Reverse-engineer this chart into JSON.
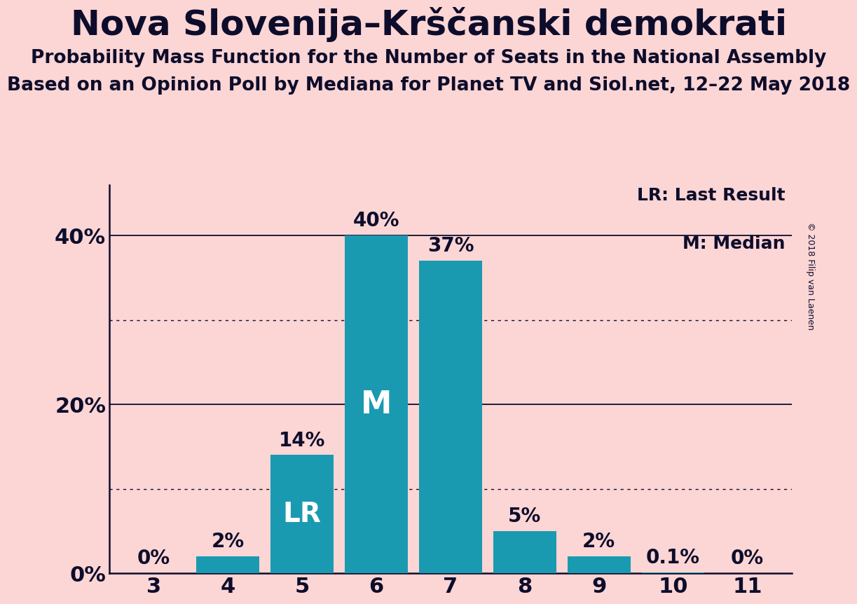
{
  "title": "Nova Slovenija–Krščanski demokrati",
  "subtitle1": "Probability Mass Function for the Number of Seats in the National Assembly",
  "subtitle2": "Based on an Opinion Poll by Mediana for Planet TV and Siol.net, 12–22 May 2018",
  "copyright": "© 2018 Filip van Laenen",
  "categories": [
    3,
    4,
    5,
    6,
    7,
    8,
    9,
    10,
    11
  ],
  "values": [
    0.0,
    2.0,
    14.0,
    40.0,
    37.0,
    5.0,
    2.0,
    0.1,
    0.0
  ],
  "bar_labels": [
    "0%",
    "2%",
    "14%",
    "40%",
    "37%",
    "5%",
    "2%",
    "0.1%",
    "0%"
  ],
  "bar_color": "#1a9ab0",
  "background_color": "#fcd5d5",
  "text_color": "#0d0d2b",
  "yticks": [
    0,
    20,
    40
  ],
  "ytick_labels": [
    "0%",
    "20%",
    "40%"
  ],
  "ylim": [
    0,
    46
  ],
  "median_bar": 6,
  "lr_bar": 5,
  "legend_lr": "LR: Last Result",
  "legend_m": "M: Median",
  "grid_dotted_values": [
    10,
    30
  ],
  "grid_solid_values": [
    20,
    40
  ],
  "title_fontsize": 36,
  "subtitle_fontsize": 19,
  "tick_fontsize": 22,
  "bar_label_fontsize": 20,
  "legend_fontsize": 18,
  "lr_label_fontsize": 28,
  "m_label_fontsize": 32
}
